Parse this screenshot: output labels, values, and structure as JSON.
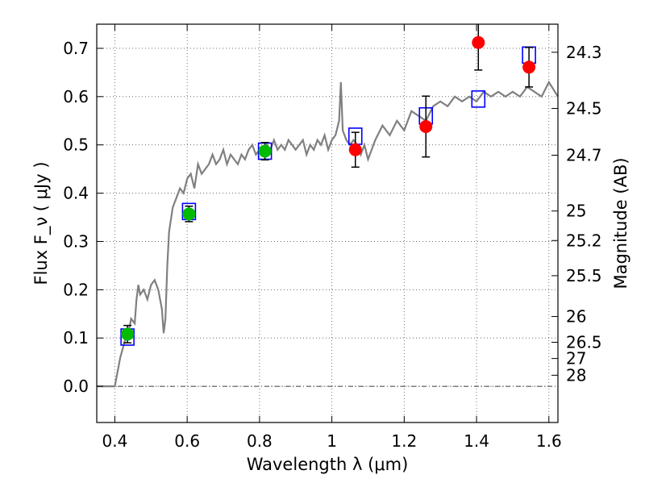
{
  "chart_data": {
    "type": "scatter",
    "title": "",
    "xlabel": "Wavelength  λ (μm)",
    "ylabel": "Flux  F_ν  ( μJy )",
    "ylabel_right": "Magnitude (AB)",
    "xlim": [
      0.35,
      1.625
    ],
    "ylim": [
      -0.075,
      0.75
    ],
    "grid": true,
    "x_ticks": [
      0.4,
      0.6,
      0.8,
      1.0,
      1.2,
      1.4,
      1.6
    ],
    "x_tick_labels": [
      "0.4",
      "0.6",
      "0.8",
      "1",
      "1.2",
      "1.4",
      "1.6"
    ],
    "y_ticks": [
      0.0,
      0.1,
      0.2,
      0.3,
      0.4,
      0.5,
      0.6,
      0.7
    ],
    "y_tick_labels": [
      "0.0",
      "0.1",
      "0.2",
      "0.3",
      "0.4",
      "0.5",
      "0.6",
      "0.7"
    ],
    "right_ticks": [
      {
        "label": "24.3",
        "value": 24.3
      },
      {
        "label": "24.5",
        "value": 24.5
      },
      {
        "label": "24.7",
        "value": 24.7
      },
      {
        "label": "25",
        "value": 25.0
      },
      {
        "label": "25.2",
        "value": 25.2
      },
      {
        "label": "25.5",
        "value": 25.5
      },
      {
        "label": "26",
        "value": 26.0
      },
      {
        "label": "26.5",
        "value": 26.5
      },
      {
        "label": "27",
        "value": 27.0
      },
      {
        "label": "28",
        "value": 28.0
      }
    ],
    "colors": {
      "model": "#808080",
      "model_photometry": "#0000ff",
      "optical": "#00bb00",
      "infrared": "#ff0000",
      "errorbar": "#000000",
      "grid": "#555555"
    },
    "series": [
      {
        "name": "model spectrum",
        "kind": "line",
        "x": [
          0.35,
          0.4,
          0.415,
          0.43,
          0.44,
          0.445,
          0.455,
          0.46,
          0.465,
          0.47,
          0.48,
          0.49,
          0.5,
          0.51,
          0.52,
          0.53,
          0.535,
          0.54,
          0.545,
          0.55,
          0.56,
          0.57,
          0.58,
          0.59,
          0.6,
          0.61,
          0.62,
          0.63,
          0.64,
          0.65,
          0.66,
          0.67,
          0.68,
          0.69,
          0.7,
          0.71,
          0.72,
          0.73,
          0.74,
          0.75,
          0.76,
          0.77,
          0.78,
          0.79,
          0.8,
          0.81,
          0.82,
          0.83,
          0.84,
          0.85,
          0.86,
          0.87,
          0.88,
          0.89,
          0.9,
          0.91,
          0.92,
          0.93,
          0.94,
          0.95,
          0.96,
          0.97,
          0.98,
          0.99,
          1.0,
          1.01,
          1.02,
          1.025,
          1.03,
          1.04,
          1.05,
          1.06,
          1.07,
          1.08,
          1.09,
          1.1,
          1.12,
          1.14,
          1.16,
          1.18,
          1.2,
          1.22,
          1.24,
          1.26,
          1.28,
          1.3,
          1.32,
          1.34,
          1.36,
          1.38,
          1.4,
          1.42,
          1.44,
          1.46,
          1.48,
          1.5,
          1.52,
          1.54,
          1.56,
          1.58,
          1.6,
          1.625
        ],
        "y": [
          0.0,
          0.0,
          0.06,
          0.1,
          0.12,
          0.14,
          0.13,
          0.18,
          0.21,
          0.19,
          0.2,
          0.18,
          0.21,
          0.22,
          0.2,
          0.16,
          0.11,
          0.14,
          0.25,
          0.32,
          0.37,
          0.39,
          0.41,
          0.4,
          0.43,
          0.44,
          0.41,
          0.46,
          0.44,
          0.45,
          0.46,
          0.48,
          0.46,
          0.47,
          0.49,
          0.46,
          0.48,
          0.47,
          0.46,
          0.48,
          0.47,
          0.49,
          0.5,
          0.48,
          0.49,
          0.48,
          0.5,
          0.49,
          0.51,
          0.49,
          0.5,
          0.49,
          0.51,
          0.5,
          0.49,
          0.5,
          0.51,
          0.48,
          0.5,
          0.49,
          0.51,
          0.5,
          0.52,
          0.49,
          0.51,
          0.52,
          0.55,
          0.63,
          0.53,
          0.51,
          0.5,
          0.51,
          0.5,
          0.48,
          0.5,
          0.47,
          0.51,
          0.54,
          0.52,
          0.55,
          0.53,
          0.57,
          0.56,
          0.55,
          0.58,
          0.59,
          0.58,
          0.6,
          0.59,
          0.6,
          0.59,
          0.61,
          0.6,
          0.61,
          0.6,
          0.61,
          0.6,
          0.62,
          0.61,
          0.6,
          0.63,
          0.6
        ]
      },
      {
        "name": "model photometry",
        "kind": "open-square",
        "x": [
          0.435,
          0.605,
          0.815,
          1.065,
          1.26,
          1.405,
          1.545
        ],
        "y": [
          0.102,
          0.362,
          0.487,
          0.518,
          0.56,
          0.595,
          0.686
        ]
      },
      {
        "name": "observed optical",
        "kind": "filled-circle",
        "x": [
          0.435,
          0.605,
          0.815
        ],
        "y": [
          0.108,
          0.357,
          0.487
        ],
        "err": [
          0.018,
          0.016,
          0.018
        ]
      },
      {
        "name": "observed infrared",
        "kind": "filled-circle",
        "x": [
          1.065,
          1.26,
          1.405,
          1.545
        ],
        "y": [
          0.49,
          0.538,
          0.712,
          0.661
        ],
        "err": [
          0.036,
          0.063,
          0.057,
          0.041
        ]
      }
    ]
  }
}
